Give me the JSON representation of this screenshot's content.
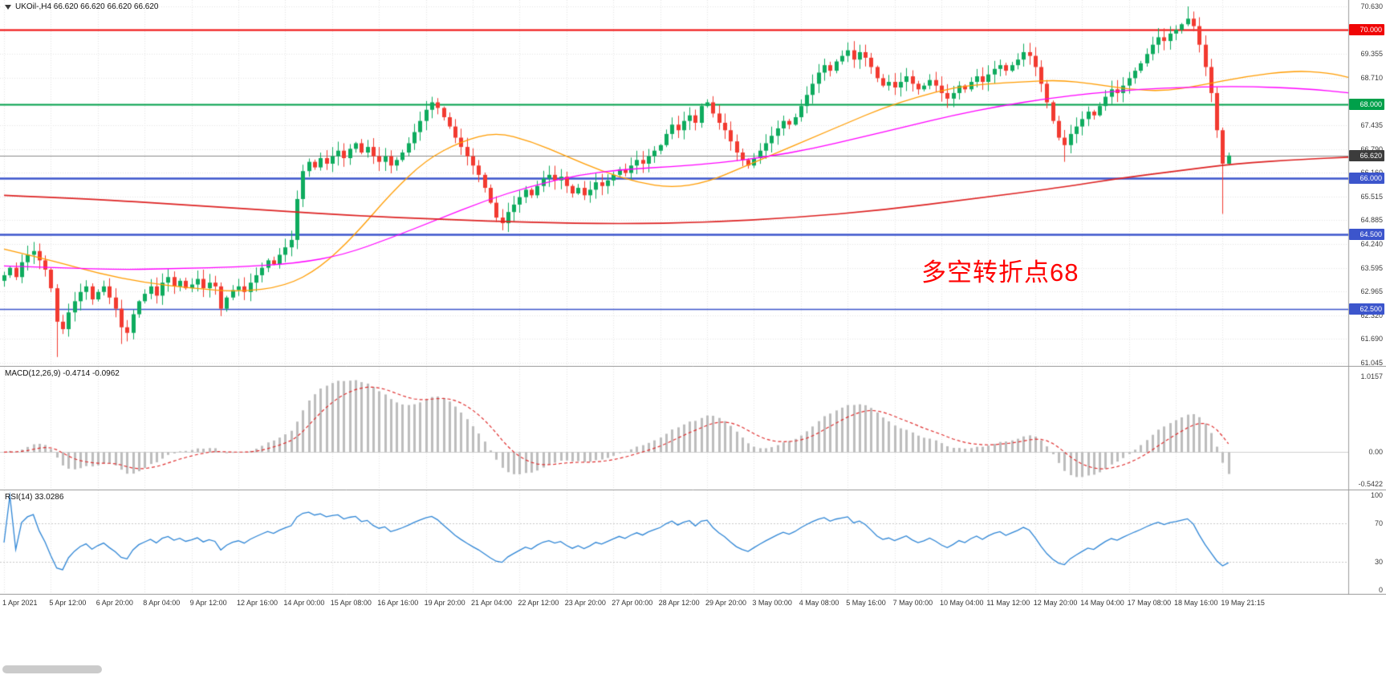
{
  "header": {
    "symbol_line": "UKOil-,H4 66.620 66.620 66.620 66.620",
    "symbol": "UKOil-",
    "timeframe": "H4",
    "open": "66.620",
    "high": "66.620",
    "low": "66.620",
    "close": "66.620"
  },
  "annotation": {
    "text": "多空转折点68",
    "color": "#ff0000"
  },
  "chart_data": {
    "type": "candlestick",
    "title": "UKOil- H4 chart with MACD and RSI",
    "symbol": "UKOil-",
    "timeframe": "H4",
    "grid": true,
    "price_axis": {
      "range": [
        61.045,
        70.63
      ],
      "ticks": [
        "70.630",
        "69.355",
        "68.710",
        "67.435",
        "66.790",
        "66.160",
        "65.515",
        "64.885",
        "64.240",
        "63.595",
        "62.965",
        "62.320",
        "61.690",
        "61.045"
      ]
    },
    "levels": [
      {
        "label": "70.000",
        "price": 70.0,
        "color": "#f00505",
        "width": 2
      },
      {
        "label": "68.000",
        "price": 68.0,
        "color": "#00a04a",
        "width": 2
      },
      {
        "label": "66.000",
        "price": 66.0,
        "color": "#3c55cc",
        "width": 2.4
      },
      {
        "label": "64.500",
        "price": 64.5,
        "color": "#3c55cc",
        "width": 2.4
      },
      {
        "label": "62.500",
        "price": 62.5,
        "color": "#3c55cc",
        "width": 1.5
      }
    ],
    "current_price": {
      "label": "66.620",
      "price": 66.62,
      "line_color": "#8a8a8a",
      "label_bg": "#3c3c3c"
    },
    "bars_per_label": 8,
    "time_labels": [
      "1 Apr 2021",
      "5 Apr 12:00",
      "6 Apr 20:00",
      "8 Apr 04:00",
      "9 Apr 12:00",
      "12 Apr 16:00",
      "14 Apr 00:00",
      "15 Apr 08:00",
      "16 Apr 16:00",
      "19 Apr 20:00",
      "21 Apr 04:00",
      "22 Apr 12:00",
      "23 Apr 20:00",
      "27 Apr 00:00",
      "28 Apr 12:00",
      "29 Apr 20:00",
      "3 May 00:00",
      "4 May 08:00",
      "5 May 16:00",
      "7 May 00:00",
      "10 May 04:00",
      "11 May 12:00",
      "12 May 20:00",
      "14 May 04:00",
      "17 May 08:00",
      "18 May 16:00",
      "19 May 21:15"
    ],
    "candle_up_color": "#0eab5e",
    "candle_down_color": "#f23a30",
    "closes": [
      63.4,
      63.6,
      63.35,
      63.75,
      63.95,
      64.05,
      63.8,
      63.55,
      63.05,
      62.15,
      61.95,
      62.4,
      62.7,
      62.95,
      63.1,
      62.75,
      62.95,
      63.1,
      62.8,
      62.5,
      62.0,
      61.85,
      62.35,
      62.7,
      62.9,
      63.1,
      62.85,
      63.2,
      63.35,
      63.1,
      63.25,
      63.05,
      63.15,
      63.3,
      63.05,
      63.2,
      63.1,
      62.5,
      62.8,
      63.0,
      63.1,
      62.95,
      63.2,
      63.4,
      63.6,
      63.8,
      63.7,
      63.95,
      64.15,
      64.35,
      65.45,
      66.2,
      66.45,
      66.3,
      66.55,
      66.4,
      66.6,
      66.75,
      66.55,
      66.8,
      66.95,
      66.7,
      66.85,
      66.6,
      66.45,
      66.6,
      66.35,
      66.5,
      66.7,
      66.95,
      67.25,
      67.55,
      67.85,
      68.05,
      67.9,
      67.65,
      67.4,
      67.1,
      66.85,
      66.6,
      66.35,
      66.1,
      65.75,
      65.35,
      64.95,
      64.8,
      65.1,
      65.3,
      65.5,
      65.7,
      65.55,
      65.8,
      66.0,
      66.1,
      65.95,
      66.05,
      65.8,
      65.6,
      65.75,
      65.55,
      65.7,
      65.9,
      65.8,
      65.95,
      66.1,
      66.25,
      66.15,
      66.35,
      66.5,
      66.4,
      66.6,
      66.75,
      66.9,
      67.2,
      67.45,
      67.3,
      67.55,
      67.7,
      67.5,
      67.95,
      68.05,
      67.75,
      67.5,
      67.3,
      67.0,
      66.7,
      66.5,
      66.35,
      66.55,
      66.75,
      66.95,
      67.15,
      67.35,
      67.55,
      67.45,
      67.65,
      67.95,
      68.25,
      68.55,
      68.85,
      69.05,
      68.9,
      69.15,
      69.3,
      69.45,
      69.2,
      69.4,
      69.25,
      69.0,
      68.7,
      68.5,
      68.6,
      68.45,
      68.6,
      68.75,
      68.55,
      68.4,
      68.5,
      68.65,
      68.5,
      68.3,
      68.15,
      68.3,
      68.5,
      68.4,
      68.6,
      68.75,
      68.6,
      68.8,
      68.95,
      69.05,
      68.9,
      69.05,
      69.2,
      69.4,
      69.3,
      69.0,
      68.55,
      68.05,
      67.55,
      67.1,
      66.9,
      67.2,
      67.4,
      67.6,
      67.8,
      67.7,
      67.95,
      68.2,
      68.4,
      68.3,
      68.5,
      68.7,
      68.9,
      69.1,
      69.35,
      69.6,
      69.8,
      69.7,
      69.9,
      70.0,
      70.15,
      70.3,
      70.1,
      69.6,
      69.0,
      68.3,
      67.3,
      66.4,
      66.62
    ],
    "wick_overrides": {
      "9": {
        "low": 61.2
      },
      "20": {
        "low": 61.55
      },
      "37": {
        "low": 62.3
      },
      "73": {
        "high": 68.2
      },
      "146": {
        "high": 69.6
      },
      "181": {
        "low": 66.45
      },
      "202": {
        "high": 70.63
      },
      "208": {
        "low": 65.05
      }
    },
    "moving_averages": [
      {
        "name": "fast-ma",
        "color": "#ff9c00",
        "width": 1.3,
        "points": [
          [
            0,
            64.1
          ],
          [
            8,
            63.8
          ],
          [
            16,
            63.45
          ],
          [
            24,
            63.2
          ],
          [
            32,
            63.05
          ],
          [
            40,
            62.95
          ],
          [
            48,
            63.1
          ],
          [
            54,
            63.6
          ],
          [
            60,
            64.5
          ],
          [
            66,
            65.6
          ],
          [
            72,
            66.5
          ],
          [
            78,
            67.0
          ],
          [
            84,
            67.25
          ],
          [
            90,
            67.0
          ],
          [
            96,
            66.6
          ],
          [
            102,
            66.2
          ],
          [
            108,
            65.9
          ],
          [
            114,
            65.75
          ],
          [
            120,
            65.9
          ],
          [
            126,
            66.3
          ],
          [
            132,
            66.7
          ],
          [
            138,
            67.1
          ],
          [
            144,
            67.5
          ],
          [
            150,
            67.9
          ],
          [
            156,
            68.2
          ],
          [
            162,
            68.45
          ],
          [
            168,
            68.55
          ],
          [
            174,
            68.6
          ],
          [
            180,
            68.65
          ],
          [
            186,
            68.55
          ],
          [
            192,
            68.4
          ],
          [
            198,
            68.35
          ],
          [
            204,
            68.5
          ],
          [
            212,
            68.75
          ],
          [
            220,
            68.9
          ],
          [
            226,
            68.85
          ],
          [
            230,
            68.7
          ]
        ]
      },
      {
        "name": "mid-ma",
        "color": "#ff00ff",
        "width": 1.3,
        "points": [
          [
            0,
            63.65
          ],
          [
            10,
            63.6
          ],
          [
            20,
            63.55
          ],
          [
            30,
            63.58
          ],
          [
            40,
            63.62
          ],
          [
            50,
            63.72
          ],
          [
            58,
            63.95
          ],
          [
            66,
            64.4
          ],
          [
            74,
            64.9
          ],
          [
            82,
            65.4
          ],
          [
            90,
            65.8
          ],
          [
            98,
            66.1
          ],
          [
            106,
            66.25
          ],
          [
            114,
            66.32
          ],
          [
            122,
            66.42
          ],
          [
            130,
            66.58
          ],
          [
            138,
            66.8
          ],
          [
            146,
            67.1
          ],
          [
            154,
            67.4
          ],
          [
            162,
            67.7
          ],
          [
            170,
            67.95
          ],
          [
            178,
            68.15
          ],
          [
            186,
            68.3
          ],
          [
            194,
            68.4
          ],
          [
            202,
            68.46
          ],
          [
            212,
            68.48
          ],
          [
            222,
            68.42
          ],
          [
            230,
            68.3
          ]
        ]
      },
      {
        "name": "slow-ma",
        "color": "#dd2222",
        "width": 1.7,
        "points": [
          [
            0,
            65.55
          ],
          [
            15,
            65.45
          ],
          [
            30,
            65.3
          ],
          [
            45,
            65.15
          ],
          [
            60,
            65.0
          ],
          [
            75,
            64.9
          ],
          [
            90,
            64.82
          ],
          [
            105,
            64.78
          ],
          [
            120,
            64.82
          ],
          [
            135,
            64.95
          ],
          [
            150,
            65.15
          ],
          [
            165,
            65.45
          ],
          [
            180,
            65.75
          ],
          [
            190,
            66.0
          ],
          [
            200,
            66.2
          ],
          [
            210,
            66.4
          ],
          [
            222,
            66.52
          ],
          [
            230,
            66.58
          ]
        ]
      }
    ],
    "macd": {
      "label": "MACD(12,26,9) -0.4714 -0.0962",
      "fast": 12,
      "slow": 26,
      "signal": 9,
      "current": -0.4714,
      "signal_current": -0.0962,
      "axis_ticks": [
        "1.0157",
        "0.00",
        "-0.5422"
      ],
      "histogram_color": "#bdbdbd",
      "signal_color": "#e03030"
    },
    "rsi": {
      "label": "RSI(14) 33.0286",
      "period": 14,
      "current": 33.0286,
      "axis_ticks": [
        "100",
        "70",
        "30",
        "0"
      ],
      "levels": [
        70,
        30
      ],
      "line_color": "#2f86d6"
    }
  }
}
